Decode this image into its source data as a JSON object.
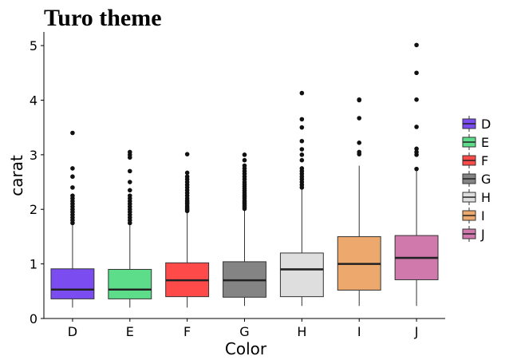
{
  "chart_data": {
    "type": "boxplot",
    "title": "Turo theme",
    "xlabel": "Color",
    "ylabel": "carat",
    "ylim": [
      0,
      5.25
    ],
    "yticks": [
      0,
      1,
      2,
      3,
      4,
      5
    ],
    "categories": [
      "D",
      "E",
      "F",
      "G",
      "H",
      "I",
      "J"
    ],
    "colors": [
      "#7b4cf0",
      "#5ddc8a",
      "#ff4a4a",
      "#848484",
      "#dedede",
      "#eda96d",
      "#cf79ad"
    ],
    "legend": {
      "position": "right",
      "entries": [
        "D",
        "E",
        "F",
        "G",
        "H",
        "I",
        "J"
      ]
    },
    "grid": false,
    "boxes": [
      {
        "category": "D",
        "whisker_low": 0.2,
        "q1": 0.36,
        "median": 0.53,
        "q3": 0.91,
        "whisker_high": 1.72,
        "outliers": [
          1.75,
          1.8,
          1.85,
          1.9,
          1.95,
          2.0,
          2.05,
          2.1,
          2.15,
          2.2,
          2.25,
          2.4,
          2.6,
          2.75,
          3.4
        ]
      },
      {
        "category": "E",
        "whisker_low": 0.2,
        "q1": 0.36,
        "median": 0.53,
        "q3": 0.9,
        "whisker_high": 1.72,
        "outliers": [
          1.75,
          1.8,
          1.85,
          1.9,
          1.95,
          2.0,
          2.05,
          2.1,
          2.15,
          2.2,
          2.25,
          2.35,
          2.5,
          2.7,
          2.95,
          3.0,
          3.05
        ]
      },
      {
        "category": "F",
        "whisker_low": 0.2,
        "q1": 0.4,
        "median": 0.7,
        "q3": 1.02,
        "whisker_high": 1.95,
        "outliers": [
          1.97,
          2.0,
          2.03,
          2.06,
          2.1,
          2.13,
          2.16,
          2.2,
          2.25,
          2.3,
          2.35,
          2.4,
          2.45,
          2.5,
          2.55,
          2.6,
          2.67,
          3.01
        ]
      },
      {
        "category": "G",
        "whisker_low": 0.23,
        "q1": 0.39,
        "median": 0.7,
        "q3": 1.04,
        "whisker_high": 2.0,
        "outliers": [
          2.01,
          2.04,
          2.07,
          2.1,
          2.13,
          2.16,
          2.2,
          2.23,
          2.26,
          2.3,
          2.34,
          2.38,
          2.42,
          2.46,
          2.5,
          2.55,
          2.6,
          2.65,
          2.7,
          2.75,
          2.8,
          2.9,
          3.0
        ]
      },
      {
        "category": "H",
        "whisker_low": 0.23,
        "q1": 0.4,
        "median": 0.9,
        "q3": 1.2,
        "whisker_high": 2.38,
        "outliers": [
          2.4,
          2.45,
          2.5,
          2.55,
          2.6,
          2.65,
          2.7,
          2.75,
          2.9,
          3.0,
          3.1,
          3.25,
          3.5,
          3.65,
          4.13
        ]
      },
      {
        "category": "I",
        "whisker_low": 0.23,
        "q1": 0.52,
        "median": 1.0,
        "q3": 1.5,
        "whisker_high": 2.8,
        "outliers": [
          3.01,
          3.05,
          3.22,
          3.67,
          4.0,
          4.01
        ]
      },
      {
        "category": "J",
        "whisker_low": 0.23,
        "q1": 0.71,
        "median": 1.11,
        "q3": 1.52,
        "whisker_high": 2.73,
        "outliers": [
          2.74,
          3.0,
          3.05,
          3.11,
          3.51,
          4.01,
          4.5,
          5.01
        ]
      }
    ]
  }
}
